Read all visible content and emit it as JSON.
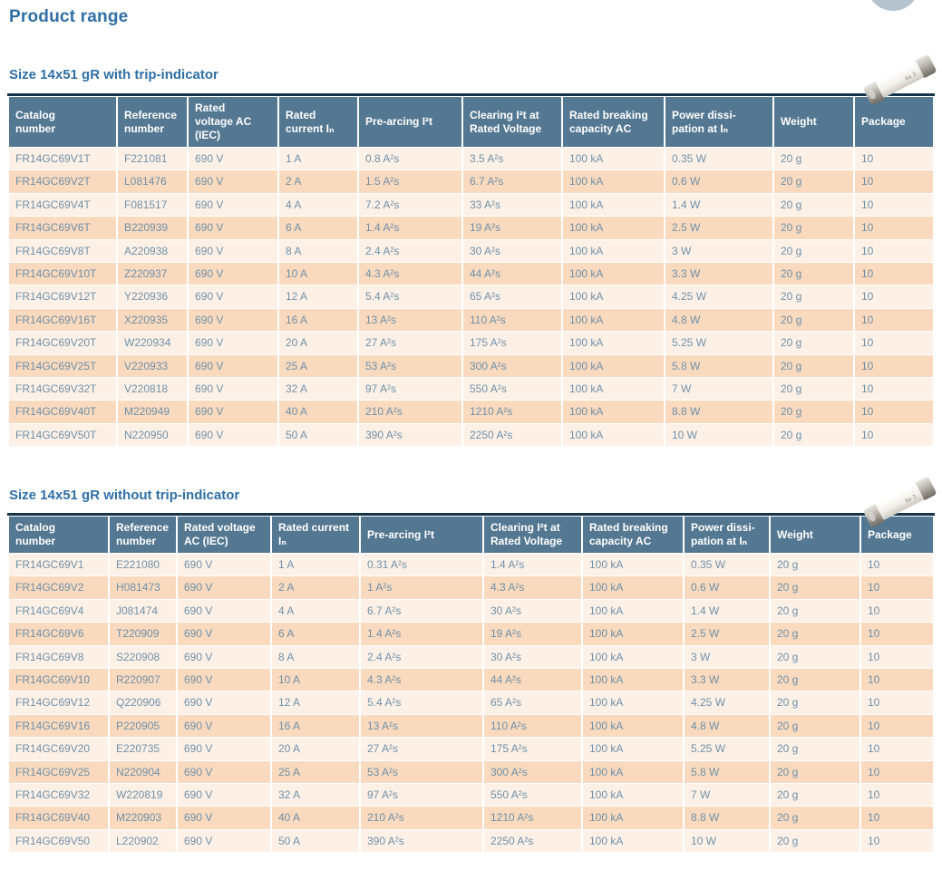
{
  "page": {
    "title": "Product range"
  },
  "colors": {
    "accent": "#2f6fa7",
    "header_bg": "#547892",
    "top_border": "#16354d",
    "row_light": "#fdf1e7",
    "row_dark": "#f9dabe",
    "cell_text": "#6f90a8",
    "circle": "#b4c3cd"
  },
  "icons": {
    "fuse_photo": "cylindrical-ceramic-fuse-photo",
    "corner_circle": "page-corner-circle"
  },
  "sections": [
    {
      "title": "Size 14x51 gR with trip-indicator",
      "columns": [
        "Catalog\nnumber",
        "Reference\nnumber",
        "Rated\nvoltage AC\n(IEC)",
        "Rated\ncurrent Iₙ",
        "Pre-arcing I²t",
        "Clearing I²t at\nRated Voltage",
        "Rated breaking\ncapacity AC",
        "Power dissi-\npation at Iₙ",
        "Weight",
        "Package"
      ],
      "rows": [
        [
          "FR14GC69V1T",
          "F221081",
          "690 V",
          "1 A",
          "0.8 A²s",
          "3.5 A²s",
          "100 kA",
          "0.35 W",
          "20 g",
          "10"
        ],
        [
          "FR14GC69V2T",
          "L081476",
          "690 V",
          "2 A",
          "1.5 A²s",
          "6.7 A²s",
          "100 kA",
          "0.6 W",
          "20 g",
          "10"
        ],
        [
          "FR14GC69V4T",
          "F081517",
          "690 V",
          "4 A",
          "7.2 A²s",
          "33 A²s",
          "100 kA",
          "1.4 W",
          "20 g",
          "10"
        ],
        [
          "FR14GC69V6T",
          "B220939",
          "690 V",
          "6 A",
          "1.4 A²s",
          "19 A²s",
          "100 kA",
          "2.5 W",
          "20 g",
          "10"
        ],
        [
          "FR14GC69V8T",
          "A220938",
          "690 V",
          "8 A",
          "2.4 A²s",
          "30 A²s",
          "100 kA",
          "3 W",
          "20 g",
          "10"
        ],
        [
          "FR14GC69V10T",
          "Z220937",
          "690 V",
          "10 A",
          "4.3 A²s",
          "44 A²s",
          "100 kA",
          "3.3 W",
          "20 g",
          "10"
        ],
        [
          "FR14GC69V12T",
          "Y220936",
          "690 V",
          "12 A",
          "5.4 A²s",
          "65 A²s",
          "100 kA",
          "4.25 W",
          "20 g",
          "10"
        ],
        [
          "FR14GC69V16T",
          "X220935",
          "690 V",
          "16 A",
          "13 A²s",
          "110 A²s",
          "100 kA",
          "4.8 W",
          "20 g",
          "10"
        ],
        [
          "FR14GC69V20T",
          "W220934",
          "690 V",
          "20 A",
          "27 A²s",
          "175 A²s",
          "100 kA",
          "5.25 W",
          "20 g",
          "10"
        ],
        [
          "FR14GC69V25T",
          "V220933",
          "690 V",
          "25 A",
          "53 A²s",
          "300 A²s",
          "100 kA",
          "5.8 W",
          "20 g",
          "10"
        ],
        [
          "FR14GC69V32T",
          "V220818",
          "690 V",
          "32 A",
          "97 A²s",
          "550 A²s",
          "100 kA",
          "7 W",
          "20 g",
          "10"
        ],
        [
          "FR14GC69V40T",
          "M220949",
          "690 V",
          "40 A",
          "210 A²s",
          "1210 A²s",
          "100 kA",
          "8.8 W",
          "20 g",
          "10"
        ],
        [
          "FR14GC69V50T",
          "N220950",
          "690 V",
          "50 A",
          "390 A²s",
          "2250 A²s",
          "100 kA",
          "10 W",
          "20 g",
          "10"
        ]
      ]
    },
    {
      "title": "Size 14x51 gR without trip-indicator",
      "columns": [
        "Catalog\nnumber",
        "Reference\nnumber",
        "Rated voltage\nAC (IEC)",
        "Rated current\nIₙ",
        "Pre-arcing I²t",
        "Clearing I²t at\nRated Voltage",
        "Rated breaking\ncapacity AC",
        "Power dissi-\npation at Iₙ",
        "Weight",
        "Package"
      ],
      "rows": [
        [
          "FR14GC69V1",
          "E221080",
          "690 V",
          "1 A",
          "0.31 A²s",
          "1.4 A²s",
          "100 kA",
          "0.35 W",
          "20 g",
          "10"
        ],
        [
          "FR14GC69V2",
          "H081473",
          "690 V",
          "2 A",
          "1 A²s",
          "4.3 A²s",
          "100 kA",
          "0.6 W",
          "20 g",
          "10"
        ],
        [
          "FR14GC69V4",
          "J081474",
          "690 V",
          "4 A",
          "6.7 A²s",
          "30 A²s",
          "100 kA",
          "1.4 W",
          "20 g",
          "10"
        ],
        [
          "FR14GC69V6",
          "T220909",
          "690 V",
          "6 A",
          "1.4 A²s",
          "19 A²s",
          "100 kA",
          "2.5 W",
          "20 g",
          "10"
        ],
        [
          "FR14GC69V8",
          "S220908",
          "690 V",
          "8 A",
          "2.4 A²s",
          "30 A²s",
          "100 kA",
          "3 W",
          "20 g",
          "10"
        ],
        [
          "FR14GC69V10",
          "R220907",
          "690 V",
          "10 A",
          "4.3 A²s",
          "44 A²s",
          "100 kA",
          "3.3 W",
          "20 g",
          "10"
        ],
        [
          "FR14GC69V12",
          "Q220906",
          "690 V",
          "12 A",
          "5.4 A²s",
          "65 A²s",
          "100 kA",
          "4.25 W",
          "20 g",
          "10"
        ],
        [
          "FR14GC69V16",
          "P220905",
          "690 V",
          "16 A",
          "13 A²s",
          "110 A²s",
          "100 kA",
          "4.8 W",
          "20 g",
          "10"
        ],
        [
          "FR14GC69V20",
          "E220735",
          "690 V",
          "20 A",
          "27 A²s",
          "175 A²s",
          "100 kA",
          "5.25 W",
          "20 g",
          "10"
        ],
        [
          "FR14GC69V25",
          "N220904",
          "690 V",
          "25 A",
          "53 A²s",
          "300 A²s",
          "100 kA",
          "5.8 W",
          "20 g",
          "10"
        ],
        [
          "FR14GC69V32",
          "W220819",
          "690 V",
          "32 A",
          "97 A²s",
          "550 A²s",
          "100 kA",
          "7 W",
          "20 g",
          "10"
        ],
        [
          "FR14GC69V40",
          "M220903",
          "690 V",
          "40 A",
          "210 A²s",
          "1210 A²s",
          "100 kA",
          "8.8 W",
          "20 g",
          "10"
        ],
        [
          "FR14GC69V50",
          "L220902",
          "690 V",
          "50 A",
          "390 A²s",
          "2250 A²s",
          "100 kA",
          "10 W",
          "20 g",
          "10"
        ]
      ]
    }
  ]
}
